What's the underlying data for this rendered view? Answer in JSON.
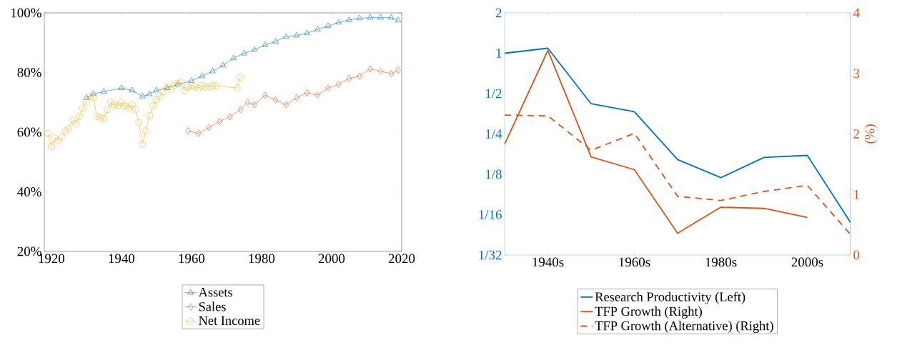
{
  "chart_data": [
    {
      "type": "line",
      "xlim": [
        1918,
        2020
      ],
      "ylim": [
        20,
        100
      ],
      "xticks": [
        1920,
        1940,
        1960,
        1980,
        2000,
        2020
      ],
      "yticks": [
        {
          "value": 20,
          "label": "20%"
        },
        {
          "value": 40,
          "label": "40%"
        },
        {
          "value": 60,
          "label": "60%"
        },
        {
          "value": 80,
          "label": "80%"
        },
        {
          "value": 100,
          "label": "100%"
        }
      ],
      "legend": "bottom",
      "grid": false,
      "series": [
        {
          "name": "Assets",
          "color": "#0072bd",
          "marker": "triangle",
          "x": [
            1930,
            1932,
            1935,
            1940,
            1943,
            1946,
            1948,
            1950,
            1953,
            1956,
            1960,
            1963,
            1966,
            1969,
            1972,
            1975,
            1978,
            1981,
            1984,
            1987,
            1990,
            1993,
            1996,
            1999,
            2002,
            2005,
            2008,
            2011,
            2014,
            2017,
            2019
          ],
          "values": [
            71.5,
            72.8,
            73.6,
            74.8,
            74,
            72,
            72.8,
            74,
            74.8,
            76,
            77.2,
            78.8,
            80.4,
            82.4,
            84.8,
            86.4,
            87.6,
            89.2,
            90.4,
            92,
            92.4,
            93.2,
            94.4,
            95.6,
            96.8,
            97.6,
            98.2,
            98.4,
            98.4,
            98.4,
            97.5
          ]
        },
        {
          "name": "Sales",
          "color": "#d95319",
          "marker": "diamond",
          "x": [
            1959,
            1962,
            1965,
            1968,
            1971,
            1974,
            1976,
            1978,
            1981,
            1984,
            1987,
            1990,
            1993,
            1996,
            1999,
            2002,
            2005,
            2008,
            2011,
            2014,
            2017,
            2019
          ],
          "values": [
            60.4,
            59.6,
            61.6,
            63.6,
            65.2,
            67.6,
            70,
            69.2,
            72.4,
            70.8,
            69.2,
            71.6,
            73.2,
            72.4,
            74.8,
            76,
            78,
            78.8,
            81.2,
            80.4,
            79.6,
            80.8
          ]
        },
        {
          "name": "Net Income",
          "color": "#edb120",
          "marker": "circle",
          "x": [
            1919,
            1920,
            1921,
            1922,
            1923,
            1924,
            1925,
            1926,
            1927,
            1928,
            1929,
            1930,
            1931,
            1932,
            1933,
            1934,
            1935,
            1936,
            1937,
            1938,
            1939,
            1940,
            1941,
            1942,
            1943,
            1944,
            1945,
            1946,
            1947,
            1948,
            1949,
            1950,
            1951,
            1952,
            1953,
            1954,
            1955,
            1956,
            1957,
            1958,
            1959,
            1960,
            1961,
            1962,
            1963,
            1964,
            1965,
            1966,
            1967,
            1973,
            1974
          ],
          "values": [
            59.6,
            55.2,
            58,
            57.2,
            58.4,
            60.4,
            61.2,
            64,
            62.8,
            65.2,
            68,
            70.4,
            72,
            71.6,
            65.2,
            64.8,
            64.4,
            67.6,
            70,
            69.2,
            68.8,
            70,
            68.8,
            68,
            69.2,
            67.6,
            63.2,
            56,
            60.4,
            65.6,
            68.8,
            70.8,
            72,
            73.6,
            75.2,
            74.4,
            75.6,
            76.4,
            76.8,
            74,
            75.2,
            75.6,
            75.2,
            74.8,
            75.6,
            75.2,
            75.2,
            75.6,
            75.6,
            74.8,
            78.4
          ]
        }
      ]
    },
    {
      "type": "line",
      "xlim": [
        1930,
        2010
      ],
      "log": "y",
      "ylim": [
        0.03125,
        2
      ],
      "y2lim": [
        0,
        4
      ],
      "xticks": [
        {
          "value": 1940,
          "label": "1940s"
        },
        {
          "value": 1960,
          "label": "1960s"
        },
        {
          "value": 1980,
          "label": "1980s"
        },
        {
          "value": 2000,
          "label": "2000s"
        }
      ],
      "yticks": [
        {
          "value": 0.03125,
          "label": "1/32"
        },
        {
          "value": 0.0625,
          "label": "1/16"
        },
        {
          "value": 0.125,
          "label": "1/8"
        },
        {
          "value": 0.25,
          "label": "1/4"
        },
        {
          "value": 0.5,
          "label": "1/2"
        },
        {
          "value": 1,
          "label": "1"
        },
        {
          "value": 2,
          "label": "2"
        }
      ],
      "y2ticks": [
        0,
        1,
        2,
        3,
        4
      ],
      "y2label": "(%)",
      "legend": "bottom",
      "grid": false,
      "x": [
        1930,
        1940,
        1950,
        1960,
        1970,
        1980,
        1990,
        2000,
        2010
      ],
      "series": [
        {
          "name": "Research Productivity (Left)",
          "color": "#0072bd",
          "line_style": "solid",
          "values": [
            1.0,
            1.09,
            0.42,
            0.366,
            0.161,
            0.118,
            0.167,
            0.173,
            0.0546
          ]
        },
        {
          "name": "TFP Growth (Right)",
          "color": "#d95319",
          "axis": "y2",
          "line_style": "solid",
          "values": [
            1.83,
            3.38,
            1.62,
            1.41,
            0.36,
            0.79,
            0.77,
            0.62,
            null
          ]
        },
        {
          "name": "TFP Growth (Alternative) (Right)",
          "color": "#d95319",
          "axis": "y2",
          "line_style": "dashed",
          "values": [
            2.31,
            2.3,
            1.73,
            2.01,
            0.97,
            0.9,
            1.05,
            1.15,
            0.34
          ]
        }
      ]
    }
  ]
}
